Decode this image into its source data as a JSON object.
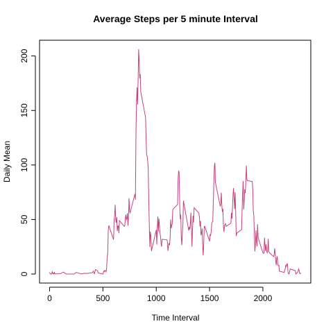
{
  "chart_data": {
    "type": "line",
    "title": "Average Steps per 5 minute Interval",
    "xlabel": "Time Interval",
    "ylabel": "Daily Mean",
    "color": "#c8417e",
    "xlim": [
      -94.2,
      2449.2
    ],
    "ylim": [
      -8.25,
      214.4
    ],
    "xticks": [
      0,
      500,
      1000,
      1500,
      2000
    ],
    "yticks": [
      0,
      50,
      100,
      150,
      200
    ],
    "x": [
      0,
      5,
      10,
      15,
      20,
      25,
      30,
      35,
      40,
      45,
      50,
      55,
      100,
      130,
      155,
      200,
      230,
      250,
      300,
      330,
      340,
      400,
      410,
      420,
      430,
      440,
      450,
      455,
      500,
      505,
      510,
      515,
      520,
      525,
      530,
      535,
      540,
      545,
      550,
      555,
      600,
      605,
      610,
      615,
      620,
      625,
      630,
      635,
      640,
      645,
      650,
      655,
      700,
      705,
      710,
      715,
      720,
      725,
      730,
      735,
      740,
      745,
      750,
      755,
      800,
      805,
      810,
      815,
      820,
      825,
      830,
      835,
      840,
      845,
      850,
      855,
      900,
      905,
      910,
      915,
      920,
      925,
      930,
      935,
      940,
      945,
      950,
      955,
      1000,
      1005,
      1010,
      1015,
      1020,
      1025,
      1030,
      1035,
      1040,
      1045,
      1050,
      1055,
      1100,
      1105,
      1110,
      1115,
      1120,
      1125,
      1130,
      1135,
      1140,
      1145,
      1150,
      1155,
      1200,
      1205,
      1210,
      1215,
      1220,
      1225,
      1230,
      1235,
      1240,
      1245,
      1250,
      1255,
      1300,
      1305,
      1310,
      1315,
      1320,
      1325,
      1330,
      1335,
      1340,
      1345,
      1350,
      1355,
      1400,
      1405,
      1410,
      1415,
      1420,
      1425,
      1430,
      1435,
      1440,
      1445,
      1450,
      1455,
      1500,
      1505,
      1510,
      1515,
      1520,
      1525,
      1530,
      1535,
      1540,
      1545,
      1550,
      1555,
      1600,
      1605,
      1610,
      1615,
      1620,
      1625,
      1630,
      1635,
      1640,
      1645,
      1650,
      1655,
      1700,
      1705,
      1710,
      1715,
      1720,
      1725,
      1730,
      1735,
      1740,
      1745,
      1750,
      1755,
      1800,
      1805,
      1810,
      1815,
      1820,
      1825,
      1830,
      1835,
      1840,
      1845,
      1850,
      1855,
      1900,
      1905,
      1910,
      1915,
      1920,
      1925,
      1930,
      1935,
      1940,
      1945,
      1950,
      1955,
      2000,
      2005,
      2010,
      2015,
      2020,
      2025,
      2030,
      2035,
      2040,
      2045,
      2050,
      2055,
      2100,
      2105,
      2110,
      2115,
      2120,
      2125,
      2130,
      2135,
      2140,
      2145,
      2150,
      2155,
      2200,
      2205,
      2210,
      2215,
      2220,
      2225,
      2230,
      2235,
      2240,
      2245,
      2250,
      2255,
      2300,
      2305,
      2310,
      2315,
      2320,
      2325,
      2330,
      2335,
      2340,
      2345,
      2350,
      2355
    ],
    "values": [
      1.7,
      0.3,
      0.1,
      0.2,
      0.1,
      2.1,
      0.5,
      0.9,
      0,
      1.5,
      0.3,
      0.1,
      0.3,
      1.8,
      0,
      0,
      0,
      1.5,
      0,
      0.8,
      0.5,
      1.2,
      2.6,
      0.3,
      4.1,
      3.5,
      3.1,
      1.1,
      0,
      1.6,
      3,
      2.2,
      3.3,
      3,
      2.1,
      6.1,
      16,
      18.3,
      39.5,
      44.5,
      31.5,
      49.3,
      53.8,
      63.5,
      50,
      47.1,
      52.2,
      39.3,
      44,
      44.2,
      37.4,
      49,
      43.8,
      44.4,
      50.5,
      54.5,
      49.9,
      51,
      55.7,
      44.3,
      52.3,
      69.5,
      57.8,
      56.2,
      73.4,
      68.2,
      129.4,
      157.5,
      171.2,
      155.4,
      177.3,
      206.2,
      195.9,
      179.6,
      183.4,
      167,
      143.5,
      124,
      109.1,
      108.1,
      103.7,
      96,
      66.2,
      45.2,
      24.8,
      38.8,
      35,
      21.1,
      40.6,
      27,
      42.4,
      52.7,
      38.9,
      50.8,
      44.3,
      37.4,
      34.7,
      28.3,
      25.1,
      31.9,
      31.4,
      29.7,
      21.3,
      25.5,
      28.4,
      26.5,
      33.4,
      50,
      42,
      44.6,
      46,
      59.2,
      63.9,
      87.7,
      94.8,
      92.8,
      63.4,
      50.2,
      54.5,
      32.4,
      26.5,
      37.7,
      45.1,
      67.3,
      42.3,
      39.9,
      43.3,
      41,
      46.2,
      56.4,
      42.8,
      25.1,
      40,
      53.5,
      47.3,
      60.8,
      55.8,
      52,
      43.6,
      48.7,
      35.5,
      37.5,
      41.8,
      27.5,
      17.1,
      26.1,
      43.6,
      43.8,
      30,
      36.1,
      35.5,
      38.8,
      46,
      47.8,
      48.1,
      65.3,
      82.9,
      98.7,
      102.1,
      84,
      62.1,
      64.1,
      74.5,
      63.2,
      56.9,
      59.8,
      43.9,
      38.6,
      44.7,
      45.5,
      46.2,
      43.7,
      46.6,
      56.3,
      50.7,
      61.2,
      72.7,
      78.9,
      68.9,
      59.7,
      75.1,
      56.5,
      34.8,
      37.5,
      40.7,
      58,
      74.7,
      85.3,
      59.3,
      67.8,
      77.7,
      74.2,
      85.3,
      99.5,
      86.6,
      85.6,
      84.9,
      77.8,
      58,
      53.4,
      36.3,
      20.7,
      27.4,
      40,
      30.2,
      25.5,
      45.7,
      33.5,
      19.6,
      19,
      19.3,
      33.3,
      26.8,
      21.2,
      27.3,
      21.3,
      19.5,
      21.3,
      32.3,
      20.2,
      15.9,
      17.2,
      23.5,
      19.2,
      12.5,
      8,
      14.7,
      16.3,
      8.7,
      7.8,
      8.1,
      2.6,
      1.5,
      3.7,
      4.8,
      8.5,
      7.1,
      8.7,
      9.8,
      2.2,
      0.3,
      0.1,
      1.6,
      4.6,
      3.3,
      2.8,
      0,
      0.8,
      1,
      1.6,
      2.6,
      4.7,
      3.3,
      0.6,
      0.2,
      1.1
    ]
  }
}
